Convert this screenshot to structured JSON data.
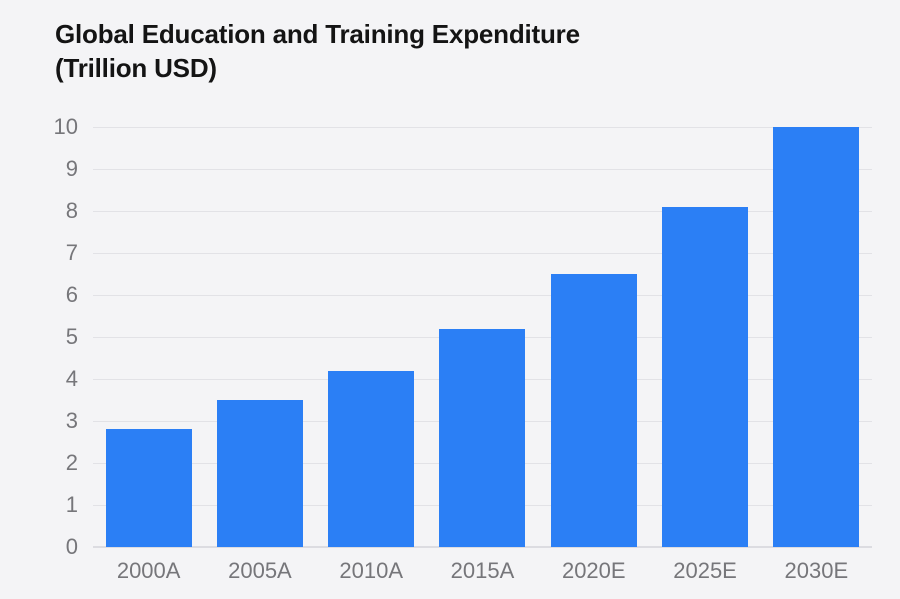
{
  "title": {
    "line1": "Global Education and Training Expenditure",
    "line2": "(Trillion USD)"
  },
  "chart_data": {
    "type": "bar",
    "title": "Global Education and Training Expenditure (Trillion USD)",
    "categories": [
      "2000A",
      "2005A",
      "2010A",
      "2015A",
      "2020E",
      "2025E",
      "2030E"
    ],
    "values": [
      2.8,
      3.5,
      4.2,
      5.2,
      6.5,
      8.1,
      10.0
    ],
    "xlabel": "",
    "ylabel": "",
    "ylim": [
      0,
      10
    ],
    "yticks": [
      0,
      1,
      2,
      3,
      4,
      5,
      6,
      7,
      8,
      9,
      10
    ],
    "grid": "horizontal",
    "legend_position": "none"
  },
  "colors": {
    "background": "#f4f4f6",
    "bar": "#2b7ff5",
    "gridline": "#e2e2e6",
    "baseline": "#dcdce1",
    "tick_label": "#76767a",
    "title_text": "#141414"
  }
}
